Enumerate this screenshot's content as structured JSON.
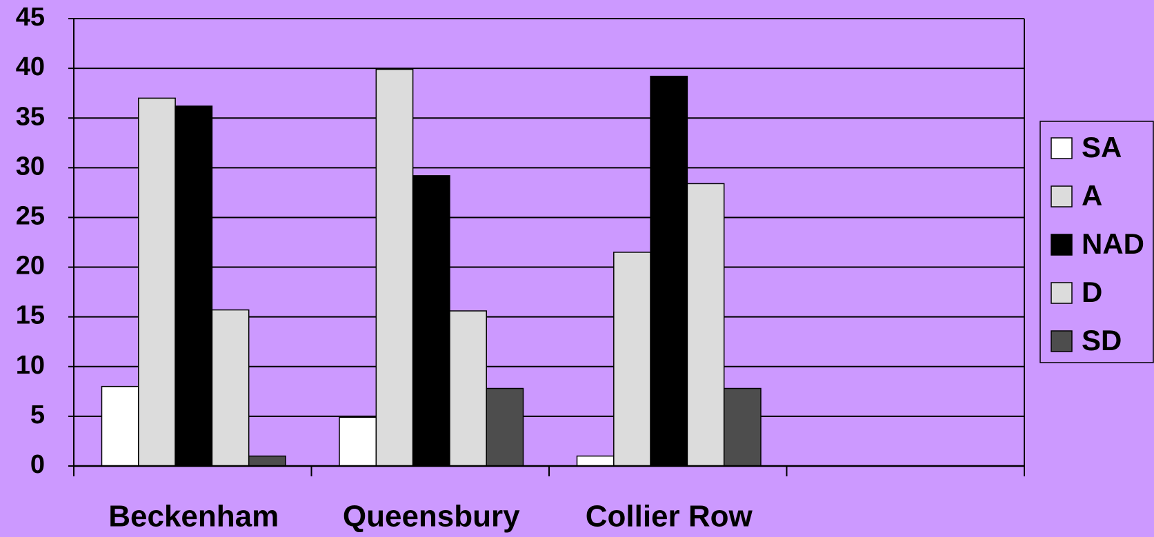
{
  "chart_data": {
    "type": "bar",
    "categories": [
      "Beckenham",
      "Queensbury",
      "Collier Row",
      null
    ],
    "series": [
      {
        "name": "SA",
        "color": "#ffffff",
        "values": [
          8,
          4.9,
          1,
          null
        ]
      },
      {
        "name": "A",
        "color": "#dcdcdc",
        "values": [
          37,
          39.9,
          21.5,
          null
        ]
      },
      {
        "name": "NAD",
        "color": "#000000",
        "values": [
          36.2,
          29.2,
          39.2,
          null
        ]
      },
      {
        "name": "D",
        "color": "#dcdcdc",
        "values": [
          15.7,
          15.6,
          28.4,
          null
        ]
      },
      {
        "name": "SD",
        "color": "#4d4d4d",
        "values": [
          1,
          7.8,
          7.8,
          null
        ]
      }
    ],
    "ylim": [
      0,
      45
    ],
    "yticks": [
      0,
      5,
      10,
      15,
      20,
      25,
      30,
      35,
      40,
      45
    ],
    "grid": true,
    "legend": "right",
    "background": "#cc99ff"
  }
}
